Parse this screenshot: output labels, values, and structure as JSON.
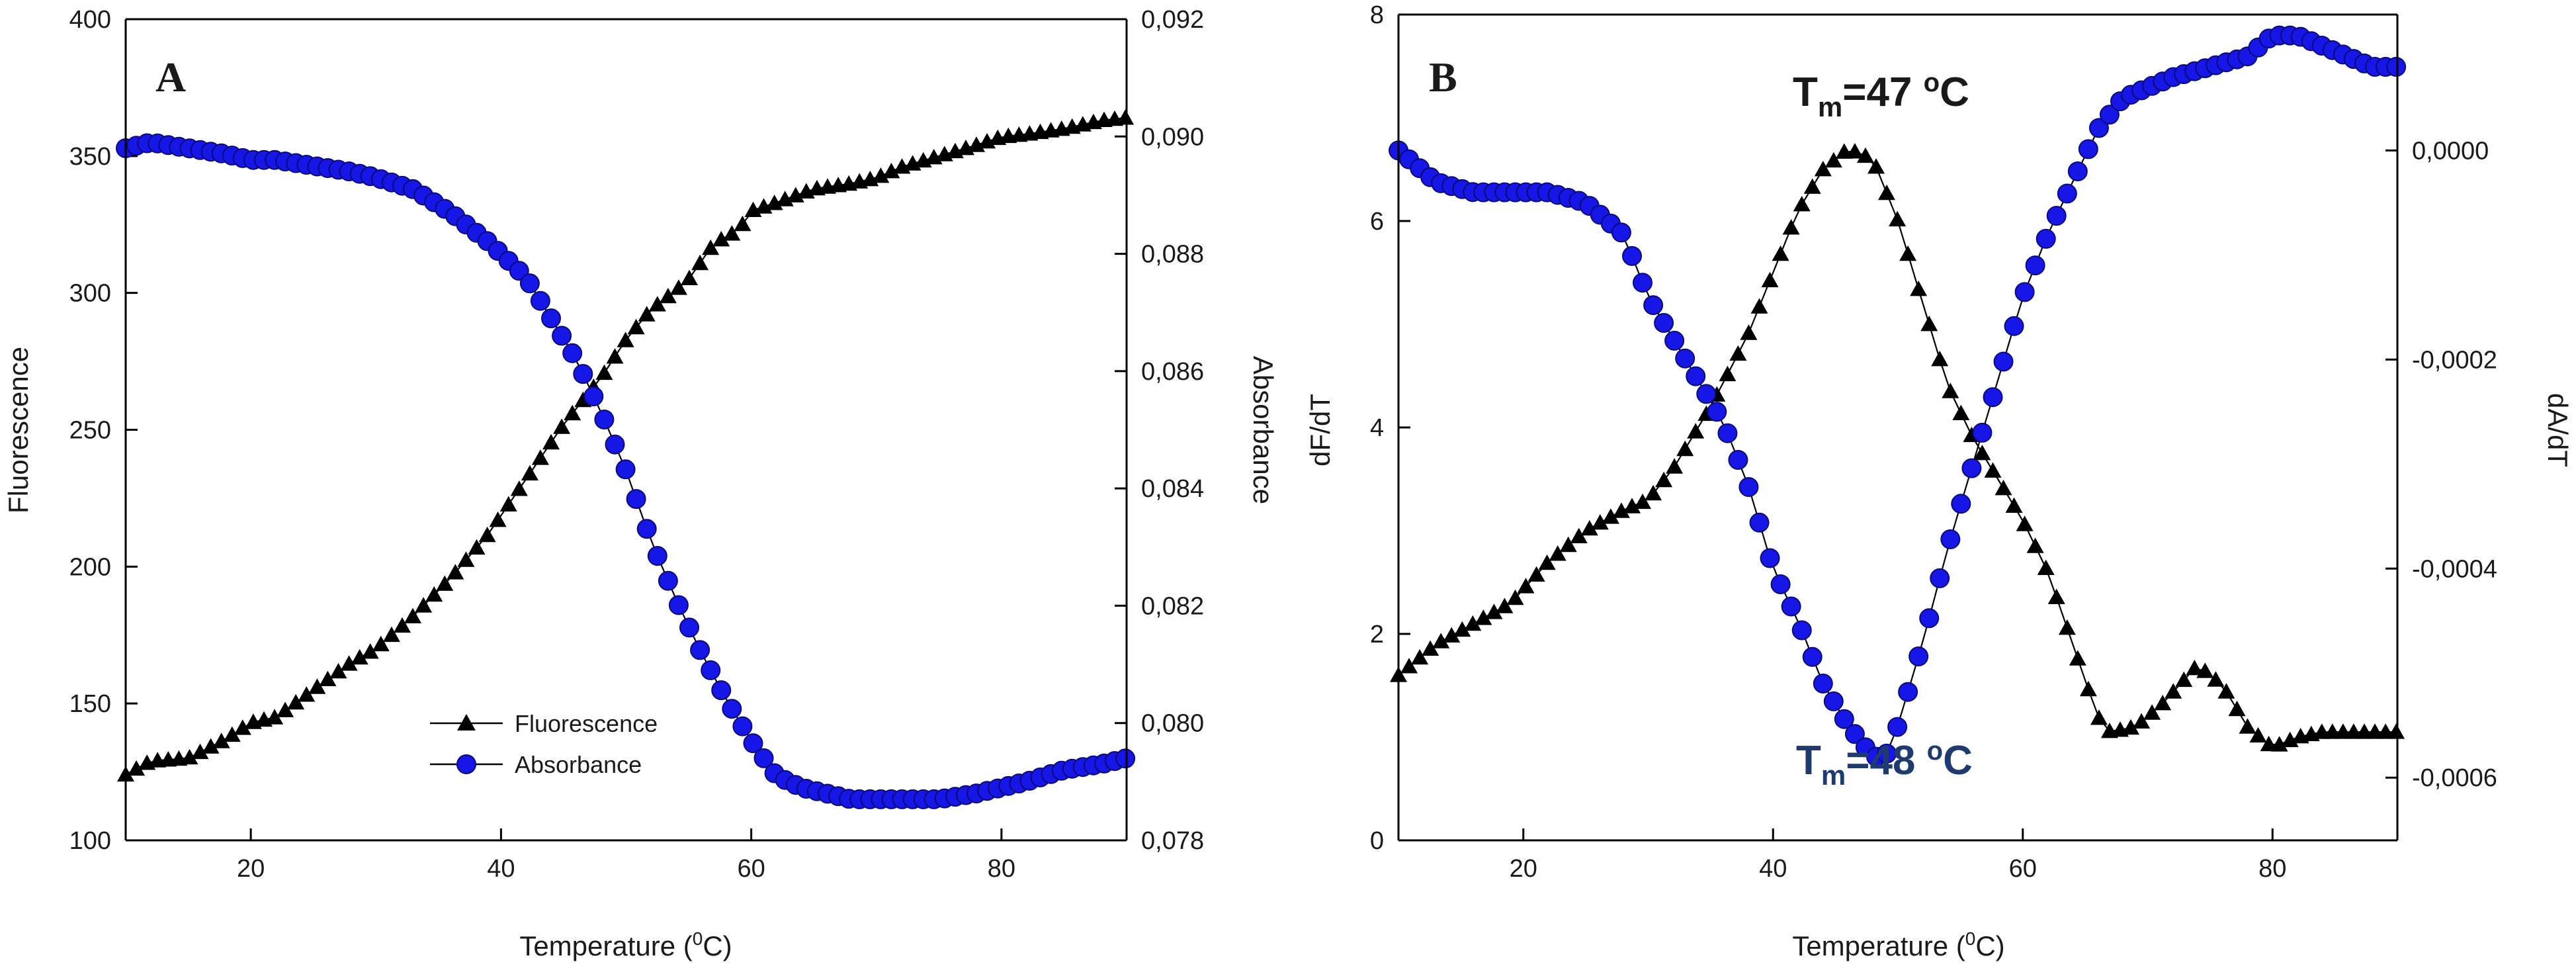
{
  "chart_data": [
    {
      "type": "line",
      "panel_label": "A",
      "xlabel": "Temperature (",
      "xlabel_sup": "0",
      "xlabel_end": "C)",
      "ylabel_left": "Fluorescence",
      "ylabel_right": "Absorbance",
      "xlim": [
        10,
        90
      ],
      "ylim_left": [
        100,
        400
      ],
      "ylim_right": [
        0.078,
        0.092
      ],
      "xticks": [
        20,
        40,
        60,
        80
      ],
      "xtick_labels": [
        "20",
        "40",
        "60",
        "80"
      ],
      "yticks_left": [
        100,
        150,
        200,
        250,
        300,
        350,
        400
      ],
      "ytick_labels_left": [
        "100",
        "150",
        "200",
        "250",
        "300",
        "350",
        "400"
      ],
      "yticks_right": [
        0.078,
        0.08,
        0.082,
        0.084,
        0.086,
        0.088,
        0.09,
        0.092
      ],
      "ytick_labels_right": [
        "0,078",
        "0,080",
        "0,082",
        "0,084",
        "0,086",
        "0,088",
        "0,090",
        "0,092"
      ],
      "legend": [
        "Fluorescence",
        "Absorbance"
      ],
      "series": [
        {
          "name": "Fluorescence",
          "axis": "left",
          "marker": "triangle",
          "color": "#000000",
          "anchors_x": [
            10,
            12,
            15,
            18,
            20,
            22,
            25,
            28,
            30,
            33,
            36,
            39,
            42,
            45,
            48,
            50,
            52,
            54,
            55,
            57,
            59,
            60,
            62,
            65,
            68,
            70,
            72,
            75,
            78,
            80,
            82,
            85,
            88,
            90
          ],
          "anchors_y": [
            124,
            129,
            130,
            137,
            143,
            145,
            155,
            165,
            170,
            182,
            196,
            212,
            232,
            252,
            269,
            283,
            294,
            301,
            305,
            318,
            323,
            330,
            333,
            338,
            340,
            342,
            346,
            350,
            354,
            357,
            358,
            360,
            363,
            364
          ]
        },
        {
          "name": "Absorbance",
          "axis": "right",
          "marker": "circle",
          "color": "#1616e6",
          "anchors_x": [
            10,
            12,
            15,
            18,
            20,
            22,
            25,
            28,
            30,
            33,
            36,
            39,
            42,
            44,
            46,
            48,
            50,
            52,
            54,
            56,
            58,
            60,
            62,
            64,
            66,
            68,
            70,
            72,
            75,
            78,
            80,
            82,
            85,
            88,
            90
          ],
          "anchors_y": [
            0.0898,
            0.0899,
            0.0898,
            0.0897,
            0.0896,
            0.0896,
            0.0895,
            0.0894,
            0.0893,
            0.0891,
            0.0887,
            0.0882,
            0.0876,
            0.0869,
            0.0862,
            0.0853,
            0.0843,
            0.0831,
            0.0821,
            0.0812,
            0.0804,
            0.0797,
            0.0791,
            0.0789,
            0.0788,
            0.0787,
            0.0787,
            0.0787,
            0.0787,
            0.0788,
            0.0789,
            0.079,
            0.0792,
            0.0793,
            0.0794
          ]
        }
      ]
    },
    {
      "type": "line",
      "panel_label": "B",
      "xlabel": "Temperature (",
      "xlabel_sup": "0",
      "xlabel_end": "C)",
      "ylabel_left": "dF/dT",
      "ylabel_right": "dA/dT",
      "xlim": [
        10,
        90
      ],
      "ylim_left": [
        0,
        8
      ],
      "ylim_right": [
        -0.00066,
        0.00013
      ],
      "xticks": [
        20,
        40,
        60,
        80
      ],
      "xtick_labels": [
        "20",
        "40",
        "60",
        "80"
      ],
      "yticks_left": [
        0,
        2,
        4,
        6,
        8
      ],
      "ytick_labels_left": [
        "0",
        "2",
        "4",
        "6",
        "8"
      ],
      "yticks_right": [
        -0.0006,
        -0.0004,
        -0.0002,
        0.0
      ],
      "ytick_labels_right": [
        "-0,0006",
        "-0,0004",
        "-0,0002",
        "0,0000"
      ],
      "annotations": [
        {
          "T": "T",
          "sub": "m",
          "rest": "=47 ",
          "deg": "o",
          "unit": "C",
          "color": "#111111"
        },
        {
          "T": "T",
          "sub": "m",
          "rest": "=48 ",
          "deg": "o",
          "unit": "C",
          "color": "#1f3a6e"
        }
      ],
      "series": [
        {
          "name": "dF/dT",
          "axis": "left",
          "marker": "triangle",
          "color": "#000000",
          "anchors_x": [
            10,
            13,
            16,
            19,
            22,
            25,
            28,
            30,
            32,
            35,
            38,
            40,
            42,
            44,
            46,
            47,
            48,
            50,
            52,
            54,
            56,
            58,
            60,
            62,
            64,
            66,
            67,
            69,
            71,
            74,
            76,
            78,
            80,
            82,
            84,
            87,
            90
          ],
          "anchors_y": [
            1.6,
            1.9,
            2.1,
            2.3,
            2.7,
            3.0,
            3.2,
            3.3,
            3.6,
            4.2,
            4.9,
            5.5,
            6.1,
            6.5,
            6.7,
            6.65,
            6.6,
            6.0,
            5.2,
            4.4,
            3.9,
            3.5,
            3.1,
            2.6,
            1.9,
            1.2,
            1.05,
            1.1,
            1.3,
            1.7,
            1.5,
            1.1,
            0.9,
            1.0,
            1.05,
            1.05,
            1.05
          ]
        },
        {
          "name": "dA/dT",
          "axis": "right",
          "marker": "circle",
          "color": "#1616e6",
          "anchors_x": [
            10,
            13,
            16,
            19,
            22,
            25,
            28,
            30,
            32,
            34,
            36,
            38,
            40,
            42,
            44,
            46,
            48,
            49,
            50,
            52,
            54,
            56,
            58,
            60,
            62,
            64,
            66,
            68,
            70,
            72,
            75,
            78,
            80,
            82,
            84,
            86,
            88,
            90
          ],
          "anchors_y": [
            0.0,
            -3e-05,
            -4e-05,
            -4e-05,
            -4e-05,
            -5e-05,
            -8e-05,
            -0.00014,
            -0.00018,
            -0.00022,
            -0.00026,
            -0.00032,
            -0.0004,
            -0.00045,
            -0.00051,
            -0.00055,
            -0.00058,
            -0.00058,
            -0.00055,
            -0.00047,
            -0.00038,
            -0.0003,
            -0.00022,
            -0.00014,
            -8e-05,
            -3e-05,
            2e-05,
            5e-05,
            6e-05,
            7e-05,
            8e-05,
            9e-05,
            0.00011,
            0.00011,
            0.0001,
            9e-05,
            8e-05,
            8e-05
          ]
        }
      ]
    }
  ]
}
